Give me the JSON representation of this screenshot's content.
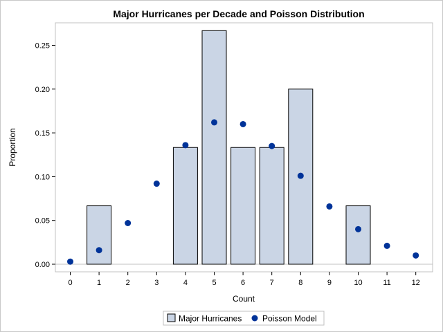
{
  "chart_data": {
    "type": "bar",
    "title": "Major Hurricanes per Decade and Poisson Distribution",
    "xlabel": "Count",
    "ylabel": "Proportion",
    "categories": [
      "0",
      "1",
      "2",
      "3",
      "4",
      "5",
      "6",
      "7",
      "8",
      "9",
      "10",
      "11",
      "12"
    ],
    "x_ticks": [
      "0",
      "1",
      "2",
      "3",
      "4",
      "5",
      "6",
      "7",
      "8",
      "9",
      "10",
      "11",
      "12"
    ],
    "y_ticks": [
      "0.00",
      "0.05",
      "0.10",
      "0.15",
      "0.20",
      "0.25"
    ],
    "ylim": [
      0,
      0.27
    ],
    "grid": false,
    "legend_position": "bottom",
    "series": [
      {
        "name": "Major Hurricanes",
        "type": "bar",
        "values": [
          0,
          0.0667,
          0,
          0,
          0.1333,
          0.2667,
          0.1333,
          0.1333,
          0.2,
          0,
          0.0667,
          0,
          0
        ],
        "fill": "#cad5e5",
        "stroke": "#000000"
      },
      {
        "name": "Poisson Model",
        "type": "scatter",
        "values": [
          0.003,
          0.016,
          0.047,
          0.092,
          0.136,
          0.162,
          0.16,
          0.135,
          0.101,
          0.066,
          0.04,
          0.021,
          0.01
        ],
        "color": "#003399"
      }
    ]
  }
}
